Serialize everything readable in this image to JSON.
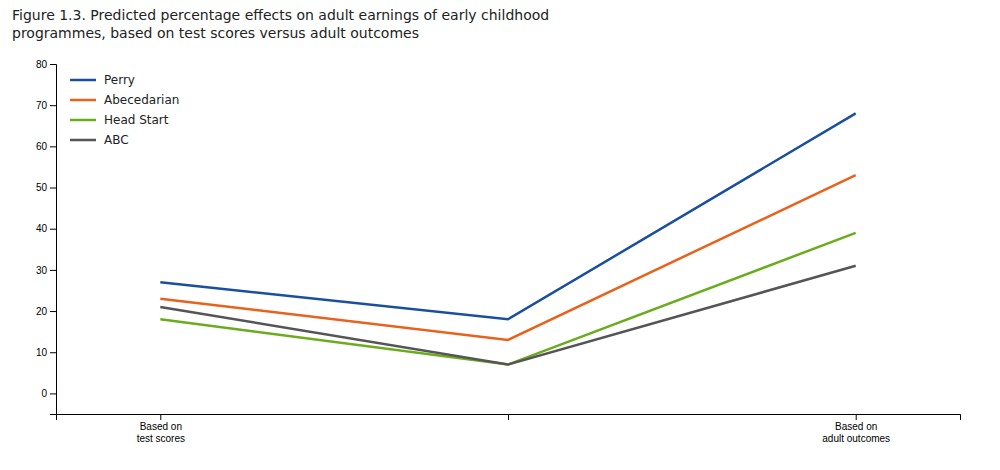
{
  "chart_data": {
    "type": "line",
    "title": "Figure 1.3. Predicted percentage effects on adult earnings of early childhood\nprogrammes, based on test scores versus adult outcomes",
    "categories": [
      "Based on\ntest scores",
      null,
      "Based on\nadult outcomes"
    ],
    "series": [
      {
        "name": "Perry",
        "color": "#1a4fa0",
        "values": [
          27,
          18,
          68
        ]
      },
      {
        "name": "Abecedarian",
        "color": "#e8621c",
        "values": [
          23,
          13,
          53
        ]
      },
      {
        "name": "Head Start",
        "color": "#6aac1e",
        "values": [
          18,
          7,
          39
        ]
      },
      {
        "name": "ABC",
        "color": "#555555",
        "values": [
          21,
          7,
          31
        ]
      }
    ],
    "ylim": [
      -5,
      80
    ],
    "yticks": [
      0,
      10,
      20,
      30,
      40,
      50,
      60,
      70,
      80
    ],
    "grid": false,
    "legend": "upper left"
  }
}
